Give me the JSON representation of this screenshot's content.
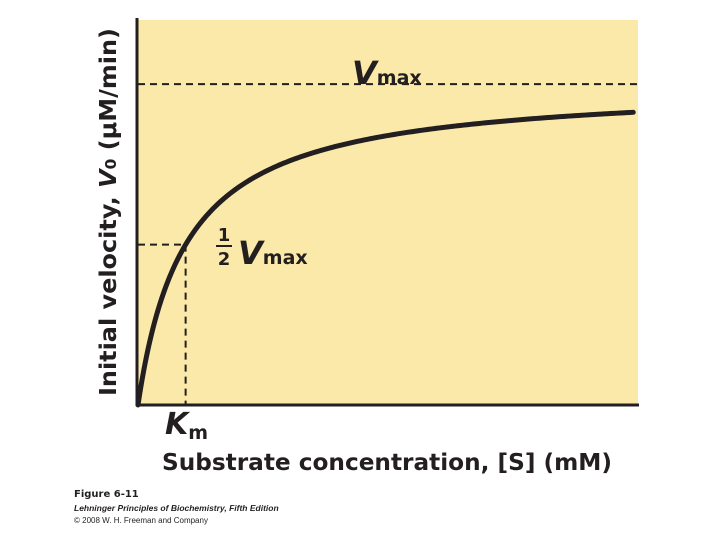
{
  "colors": {
    "plot_background": "#fbe9a9",
    "curve": "#231f20",
    "text": "#231f20"
  },
  "chart_data": {
    "type": "line",
    "title": "",
    "xlabel": "Substrate concentration, [S] (mM)",
    "ylabel": "Initial velocity, V0 (μM/min)",
    "grid": false,
    "legend": "none",
    "model": "Michaelis-Menten: V0 = Vmax·[S]/(Km + [S])",
    "params": {
      "Vmax": 1.0,
      "Km": 1.0
    },
    "xlim": [
      0,
      10.5
    ],
    "ylim": [
      0,
      1.2
    ],
    "series": [
      {
        "x": [
          0,
          0.25,
          0.5,
          0.75,
          1,
          1.5,
          2,
          3,
          4,
          5,
          6,
          7,
          8,
          9,
          10.4
        ],
        "values": [
          0,
          0.2,
          0.333,
          0.429,
          0.5,
          0.6,
          0.667,
          0.75,
          0.8,
          0.833,
          0.857,
          0.875,
          0.889,
          0.9,
          0.912
        ]
      }
    ],
    "reference_lines": [
      {
        "kind": "horizontal",
        "y": 1.0,
        "style": "dashed",
        "label_main": "V",
        "label_sub": "max"
      },
      {
        "kind": "horizontal",
        "y": 0.5,
        "style": "dashed",
        "label_frac_num": "1",
        "label_frac_den": "2",
        "label_main": "V",
        "label_sub": "max"
      },
      {
        "kind": "vertical",
        "x": 1.0,
        "style": "dashed",
        "label_main": "K",
        "label_sub": "m"
      }
    ]
  },
  "labels": {
    "xlabel_text": "Substrate concentration, [S] (mM)",
    "ylabel_prefix": "Initial velocity, ",
    "ylabel_var": "V",
    "ylabel_sub": "0",
    "ylabel_unit": " (μM/min)"
  },
  "credits": {
    "figure": "Figure 6-11",
    "book": "Lehninger Principles of Biochemistry, Fifth Edition",
    "copyright": "© 2008 W. H. Freeman and Company"
  }
}
